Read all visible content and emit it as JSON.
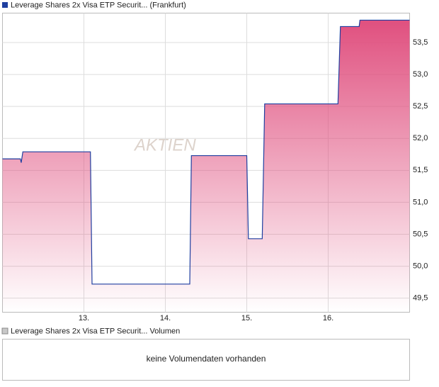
{
  "chart_data": {
    "type": "line",
    "watermark": "AKTIEN",
    "x": [
      12.0,
      12.22,
      12.23,
      12.25,
      13.08,
      13.1,
      14.3,
      14.32,
      15.0,
      15.02,
      15.19,
      15.22,
      16.12,
      16.15,
      16.38,
      16.39,
      17.0
    ],
    "series": [
      {
        "name": "Leverage Shares 2x Visa ETP Securit... (Frankfurt)",
        "color": "#1f3fa0",
        "area_color": "#e0507f",
        "values": [
          51.68,
          51.68,
          51.62,
          51.79,
          51.79,
          49.72,
          49.72,
          51.73,
          51.73,
          50.43,
          50.43,
          52.54,
          52.54,
          53.75,
          53.75,
          53.85,
          53.85
        ]
      }
    ],
    "xlim": [
      12,
      17
    ],
    "xticks": [
      {
        "value": 13,
        "label": "13."
      },
      {
        "value": 14,
        "label": "14."
      },
      {
        "value": 15,
        "label": "15."
      },
      {
        "value": 16,
        "label": "16."
      }
    ],
    "ylim": [
      49.28,
      53.96
    ],
    "yticks": [
      {
        "value": 49.5,
        "label": "49,5"
      },
      {
        "value": 50,
        "label": "50,0"
      },
      {
        "value": 50.5,
        "label": "50,5"
      },
      {
        "value": 51,
        "label": "51,0"
      },
      {
        "value": 51.5,
        "label": "51,5"
      },
      {
        "value": 52,
        "label": "52,0"
      },
      {
        "value": 52.5,
        "label": "52,5"
      },
      {
        "value": 53,
        "label": "53,0"
      },
      {
        "value": 53.5,
        "label": "53,5"
      }
    ],
    "grid": true
  },
  "volume_panel": {
    "legend": "Leverage Shares 2x Visa ETP Securit... Volumen",
    "color": "#c8c8c8",
    "message": "keine Volumendaten vorhanden"
  }
}
